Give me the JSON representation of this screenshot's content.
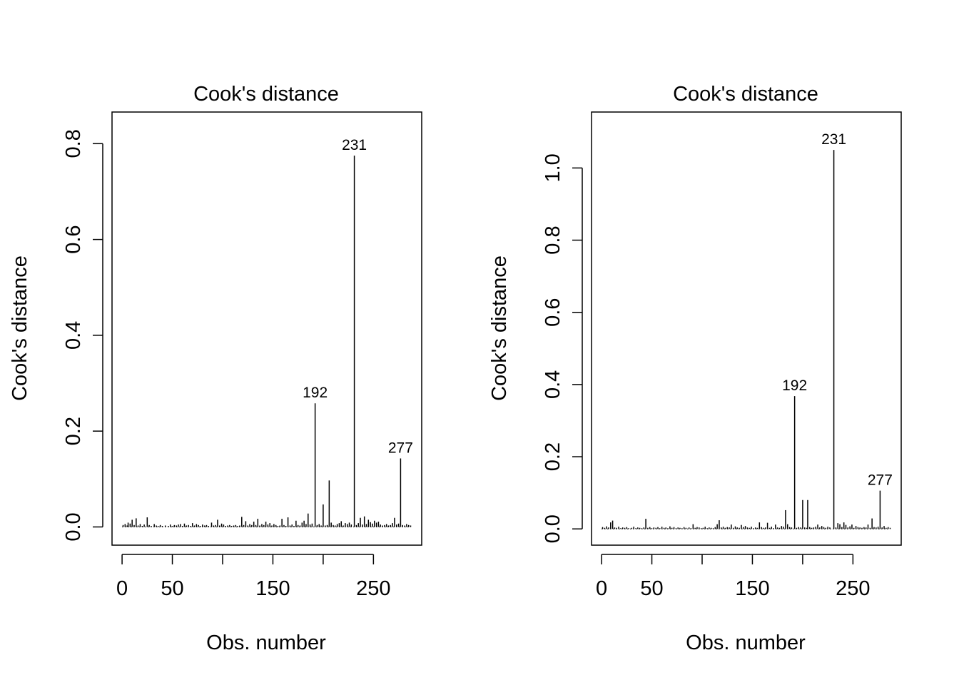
{
  "chart_data": [
    {
      "type": "bar",
      "title": "Cook's distance",
      "xlabel": "Obs. number",
      "ylabel": "Cook's distance",
      "xlim": [
        -10,
        298
      ],
      "ylim": [
        -0.038,
        0.866
      ],
      "x_ticks": [
        0,
        50,
        100,
        150,
        200,
        250
      ],
      "x_tick_labels": [
        "0",
        "50",
        "",
        "150",
        "",
        "250"
      ],
      "y_ticks": [
        0.0,
        0.2,
        0.4,
        0.6,
        0.8
      ],
      "y_tick_labels": [
        "0.0",
        "0.2",
        "0.4",
        "0.6",
        "0.8"
      ],
      "grid": false,
      "points": [
        [
          1,
          0.004
        ],
        [
          3,
          0.006
        ],
        [
          5,
          0.003
        ],
        [
          6,
          0.009
        ],
        [
          8,
          0.007
        ],
        [
          10,
          0.015
        ],
        [
          12,
          0.004
        ],
        [
          14,
          0.018
        ],
        [
          16,
          0.003
        ],
        [
          18,
          0.006
        ],
        [
          20,
          0.002
        ],
        [
          22,
          0.005
        ],
        [
          25,
          0.02
        ],
        [
          27,
          0.004
        ],
        [
          29,
          0.002
        ],
        [
          32,
          0.006
        ],
        [
          34,
          0.003
        ],
        [
          36,
          0.002
        ],
        [
          38,
          0.004
        ],
        [
          40,
          0.002
        ],
        [
          43,
          0.003
        ],
        [
          46,
          0.002
        ],
        [
          48,
          0.005
        ],
        [
          50,
          0.002
        ],
        [
          52,
          0.004
        ],
        [
          54,
          0.003
        ],
        [
          56,
          0.005
        ],
        [
          58,
          0.006
        ],
        [
          60,
          0.002
        ],
        [
          62,
          0.007
        ],
        [
          64,
          0.003
        ],
        [
          66,
          0.004
        ],
        [
          68,
          0.002
        ],
        [
          70,
          0.008
        ],
        [
          72,
          0.003
        ],
        [
          74,
          0.006
        ],
        [
          76,
          0.004
        ],
        [
          78,
          0.002
        ],
        [
          80,
          0.005
        ],
        [
          82,
          0.003
        ],
        [
          84,
          0.004
        ],
        [
          86,
          0.002
        ],
        [
          89,
          0.009
        ],
        [
          91,
          0.003
        ],
        [
          93,
          0.004
        ],
        [
          95,
          0.015
        ],
        [
          97,
          0.003
        ],
        [
          99,
          0.007
        ],
        [
          101,
          0.005
        ],
        [
          103,
          0.002
        ],
        [
          105,
          0.003
        ],
        [
          107,
          0.004
        ],
        [
          109,
          0.002
        ],
        [
          111,
          0.003
        ],
        [
          113,
          0.004
        ],
        [
          115,
          0.002
        ],
        [
          117,
          0.003
        ],
        [
          119,
          0.021
        ],
        [
          121,
          0.004
        ],
        [
          123,
          0.012
        ],
        [
          125,
          0.003
        ],
        [
          127,
          0.006
        ],
        [
          129,
          0.004
        ],
        [
          131,
          0.011
        ],
        [
          133,
          0.004
        ],
        [
          135,
          0.017
        ],
        [
          137,
          0.003
        ],
        [
          139,
          0.006
        ],
        [
          141,
          0.004
        ],
        [
          143,
          0.011
        ],
        [
          145,
          0.005
        ],
        [
          147,
          0.008
        ],
        [
          149,
          0.003
        ],
        [
          151,
          0.006
        ],
        [
          153,
          0.004
        ],
        [
          155,
          0.002
        ],
        [
          157,
          0.003
        ],
        [
          159,
          0.017
        ],
        [
          161,
          0.004
        ],
        [
          163,
          0.002
        ],
        [
          165,
          0.02
        ],
        [
          167,
          0.003
        ],
        [
          169,
          0.005
        ],
        [
          171,
          0.002
        ],
        [
          173,
          0.013
        ],
        [
          175,
          0.004
        ],
        [
          177,
          0.003
        ],
        [
          179,
          0.009
        ],
        [
          181,
          0.013
        ],
        [
          183,
          0.006
        ],
        [
          185,
          0.028
        ],
        [
          187,
          0.005
        ],
        [
          189,
          0.007
        ],
        [
          192,
          0.258
        ],
        [
          194,
          0.004
        ],
        [
          196,
          0.006
        ],
        [
          198,
          0.003
        ],
        [
          200,
          0.047
        ],
        [
          202,
          0.003
        ],
        [
          204,
          0.004
        ],
        [
          206,
          0.097
        ],
        [
          208,
          0.009
        ],
        [
          210,
          0.004
        ],
        [
          212,
          0.003
        ],
        [
          214,
          0.006
        ],
        [
          216,
          0.008
        ],
        [
          218,
          0.012
        ],
        [
          220,
          0.003
        ],
        [
          222,
          0.008
        ],
        [
          224,
          0.006
        ],
        [
          226,
          0.009
        ],
        [
          228,
          0.005
        ],
        [
          231,
          0.775
        ],
        [
          233,
          0.004
        ],
        [
          235,
          0.008
        ],
        [
          237,
          0.019
        ],
        [
          239,
          0.005
        ],
        [
          241,
          0.022
        ],
        [
          243,
          0.006
        ],
        [
          245,
          0.015
        ],
        [
          247,
          0.01
        ],
        [
          249,
          0.007
        ],
        [
          251,
          0.013
        ],
        [
          253,
          0.009
        ],
        [
          255,
          0.011
        ],
        [
          257,
          0.005
        ],
        [
          259,
          0.003
        ],
        [
          261,
          0.004
        ],
        [
          263,
          0.006
        ],
        [
          265,
          0.003
        ],
        [
          267,
          0.004
        ],
        [
          269,
          0.008
        ],
        [
          271,
          0.019
        ],
        [
          273,
          0.005
        ],
        [
          275,
          0.007
        ],
        [
          277,
          0.143
        ],
        [
          279,
          0.004
        ],
        [
          281,
          0.003
        ],
        [
          283,
          0.006
        ],
        [
          285,
          0.004
        ],
        [
          287,
          0.003
        ]
      ],
      "annotations": [
        {
          "x": 192,
          "y": 0.258,
          "label": "192"
        },
        {
          "x": 231,
          "y": 0.775,
          "label": "231"
        },
        {
          "x": 277,
          "y": 0.143,
          "label": "277"
        }
      ]
    },
    {
      "type": "bar",
      "title": "Cook's distance",
      "xlabel": "Obs. number",
      "ylabel": "Cook's distance",
      "xlim": [
        -10,
        298
      ],
      "ylim": [
        -0.045,
        1.155
      ],
      "x_ticks": [
        0,
        50,
        100,
        150,
        200,
        250
      ],
      "x_tick_labels": [
        "0",
        "50",
        "",
        "150",
        "",
        "250"
      ],
      "y_ticks": [
        0.0,
        0.2,
        0.4,
        0.6,
        0.8,
        1.0
      ],
      "y_tick_labels": [
        "0.0",
        "0.2",
        "0.4",
        "0.6",
        "0.8",
        "1.0"
      ],
      "grid": false,
      "points": [
        [
          1,
          0.005
        ],
        [
          3,
          0.003
        ],
        [
          5,
          0.007
        ],
        [
          7,
          0.004
        ],
        [
          9,
          0.018
        ],
        [
          11,
          0.023
        ],
        [
          13,
          0.004
        ],
        [
          15,
          0.003
        ],
        [
          17,
          0.006
        ],
        [
          19,
          0.002
        ],
        [
          21,
          0.004
        ],
        [
          23,
          0.003
        ],
        [
          25,
          0.005
        ],
        [
          27,
          0.002
        ],
        [
          30,
          0.003
        ],
        [
          32,
          0.006
        ],
        [
          34,
          0.002
        ],
        [
          36,
          0.004
        ],
        [
          38,
          0.003
        ],
        [
          40,
          0.002
        ],
        [
          42,
          0.004
        ],
        [
          44,
          0.028
        ],
        [
          46,
          0.003
        ],
        [
          48,
          0.005
        ],
        [
          50,
          0.002
        ],
        [
          52,
          0.004
        ],
        [
          54,
          0.003
        ],
        [
          56,
          0.005
        ],
        [
          58,
          0.002
        ],
        [
          60,
          0.006
        ],
        [
          62,
          0.003
        ],
        [
          64,
          0.004
        ],
        [
          66,
          0.002
        ],
        [
          68,
          0.007
        ],
        [
          70,
          0.003
        ],
        [
          72,
          0.005
        ],
        [
          74,
          0.002
        ],
        [
          76,
          0.004
        ],
        [
          78,
          0.003
        ],
        [
          80,
          0.002
        ],
        [
          82,
          0.005
        ],
        [
          84,
          0.003
        ],
        [
          87,
          0.004
        ],
        [
          89,
          0.002
        ],
        [
          91,
          0.013
        ],
        [
          93,
          0.003
        ],
        [
          95,
          0.005
        ],
        [
          97,
          0.004
        ],
        [
          99,
          0.002
        ],
        [
          101,
          0.003
        ],
        [
          103,
          0.006
        ],
        [
          105,
          0.002
        ],
        [
          107,
          0.004
        ],
        [
          109,
          0.003
        ],
        [
          111,
          0.002
        ],
        [
          113,
          0.005
        ],
        [
          115,
          0.013
        ],
        [
          117,
          0.024
        ],
        [
          119,
          0.004
        ],
        [
          121,
          0.006
        ],
        [
          123,
          0.003
        ],
        [
          125,
          0.005
        ],
        [
          127,
          0.004
        ],
        [
          129,
          0.012
        ],
        [
          131,
          0.003
        ],
        [
          133,
          0.007
        ],
        [
          135,
          0.004
        ],
        [
          137,
          0.003
        ],
        [
          139,
          0.011
        ],
        [
          141,
          0.005
        ],
        [
          143,
          0.008
        ],
        [
          145,
          0.004
        ],
        [
          147,
          0.003
        ],
        [
          149,
          0.006
        ],
        [
          151,
          0.002
        ],
        [
          153,
          0.004
        ],
        [
          155,
          0.003
        ],
        [
          157,
          0.018
        ],
        [
          159,
          0.005
        ],
        [
          161,
          0.003
        ],
        [
          163,
          0.004
        ],
        [
          165,
          0.017
        ],
        [
          167,
          0.003
        ],
        [
          169,
          0.006
        ],
        [
          171,
          0.002
        ],
        [
          173,
          0.012
        ],
        [
          175,
          0.004
        ],
        [
          177,
          0.003
        ],
        [
          179,
          0.008
        ],
        [
          181,
          0.006
        ],
        [
          183,
          0.052
        ],
        [
          185,
          0.013
        ],
        [
          187,
          0.005
        ],
        [
          189,
          0.004
        ],
        [
          192,
          0.368
        ],
        [
          194,
          0.003
        ],
        [
          196,
          0.005
        ],
        [
          198,
          0.004
        ],
        [
          200,
          0.08
        ],
        [
          202,
          0.004
        ],
        [
          204,
          0.003
        ],
        [
          205,
          0.08
        ],
        [
          207,
          0.005
        ],
        [
          209,
          0.003
        ],
        [
          211,
          0.004
        ],
        [
          213,
          0.006
        ],
        [
          215,
          0.012
        ],
        [
          217,
          0.004
        ],
        [
          219,
          0.008
        ],
        [
          221,
          0.005
        ],
        [
          223,
          0.003
        ],
        [
          225,
          0.006
        ],
        [
          227,
          0.004
        ],
        [
          231,
          1.05
        ],
        [
          233,
          0.004
        ],
        [
          235,
          0.016
        ],
        [
          237,
          0.013
        ],
        [
          239,
          0.005
        ],
        [
          241,
          0.018
        ],
        [
          243,
          0.011
        ],
        [
          245,
          0.004
        ],
        [
          247,
          0.007
        ],
        [
          249,
          0.012
        ],
        [
          251,
          0.003
        ],
        [
          253,
          0.008
        ],
        [
          255,
          0.005
        ],
        [
          257,
          0.004
        ],
        [
          259,
          0.003
        ],
        [
          261,
          0.005
        ],
        [
          263,
          0.004
        ],
        [
          265,
          0.012
        ],
        [
          267,
          0.003
        ],
        [
          269,
          0.029
        ],
        [
          271,
          0.005
        ],
        [
          273,
          0.004
        ],
        [
          275,
          0.006
        ],
        [
          277,
          0.106
        ],
        [
          279,
          0.004
        ],
        [
          281,
          0.008
        ],
        [
          283,
          0.003
        ],
        [
          285,
          0.005
        ],
        [
          287,
          0.003
        ]
      ],
      "annotations": [
        {
          "x": 192,
          "y": 0.368,
          "label": "192"
        },
        {
          "x": 231,
          "y": 1.05,
          "label": "231"
        },
        {
          "x": 277,
          "y": 0.106,
          "label": "277"
        }
      ]
    }
  ]
}
